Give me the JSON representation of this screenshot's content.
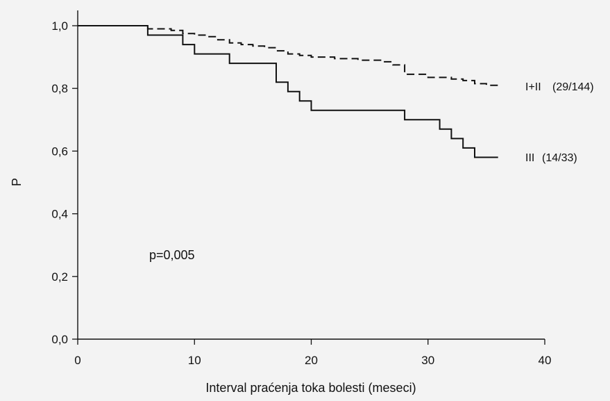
{
  "colors": {
    "background": "#f3f3f3",
    "ink": "#111111"
  },
  "chart_data": {
    "type": "line",
    "title": "",
    "xlabel": "Interval praćenja toka bolesti (meseci)",
    "ylabel": "P",
    "xlim": [
      0,
      40
    ],
    "ylim": [
      0,
      1.0
    ],
    "xticks": [
      0,
      10,
      20,
      30,
      40
    ],
    "xtick_labels": [
      "0",
      "10",
      "20",
      "30",
      "40"
    ],
    "yticks": [
      0,
      0.2,
      0.4,
      0.6,
      0.8,
      1.0
    ],
    "ytick_labels": [
      "0,0",
      "0,2",
      "0,4",
      "0,6",
      "0,8",
      "1,0"
    ],
    "grid": false,
    "step": true,
    "annotation": "p=0,005",
    "series": [
      {
        "name": "I+II",
        "count": "(29/144)",
        "style": "dashed",
        "x": [
          0,
          6,
          8,
          9,
          10,
          11,
          12,
          13,
          14,
          15,
          16,
          17,
          18,
          19,
          20,
          22,
          24,
          26,
          27,
          28,
          30,
          32,
          33,
          34,
          35,
          36
        ],
        "y": [
          1.0,
          0.99,
          0.985,
          0.975,
          0.97,
          0.965,
          0.955,
          0.945,
          0.94,
          0.935,
          0.93,
          0.92,
          0.91,
          0.905,
          0.9,
          0.895,
          0.89,
          0.885,
          0.875,
          0.845,
          0.835,
          0.83,
          0.825,
          0.815,
          0.81,
          0.81
        ]
      },
      {
        "name": "III",
        "count": "(14/33)",
        "style": "solid",
        "x": [
          0,
          6,
          9,
          10,
          13,
          17,
          18,
          19,
          20,
          28,
          31,
          32,
          33,
          34,
          35,
          36
        ],
        "y": [
          1.0,
          0.97,
          0.94,
          0.91,
          0.88,
          0.82,
          0.79,
          0.76,
          0.73,
          0.7,
          0.67,
          0.64,
          0.61,
          0.58,
          0.58,
          0.58
        ]
      }
    ]
  }
}
